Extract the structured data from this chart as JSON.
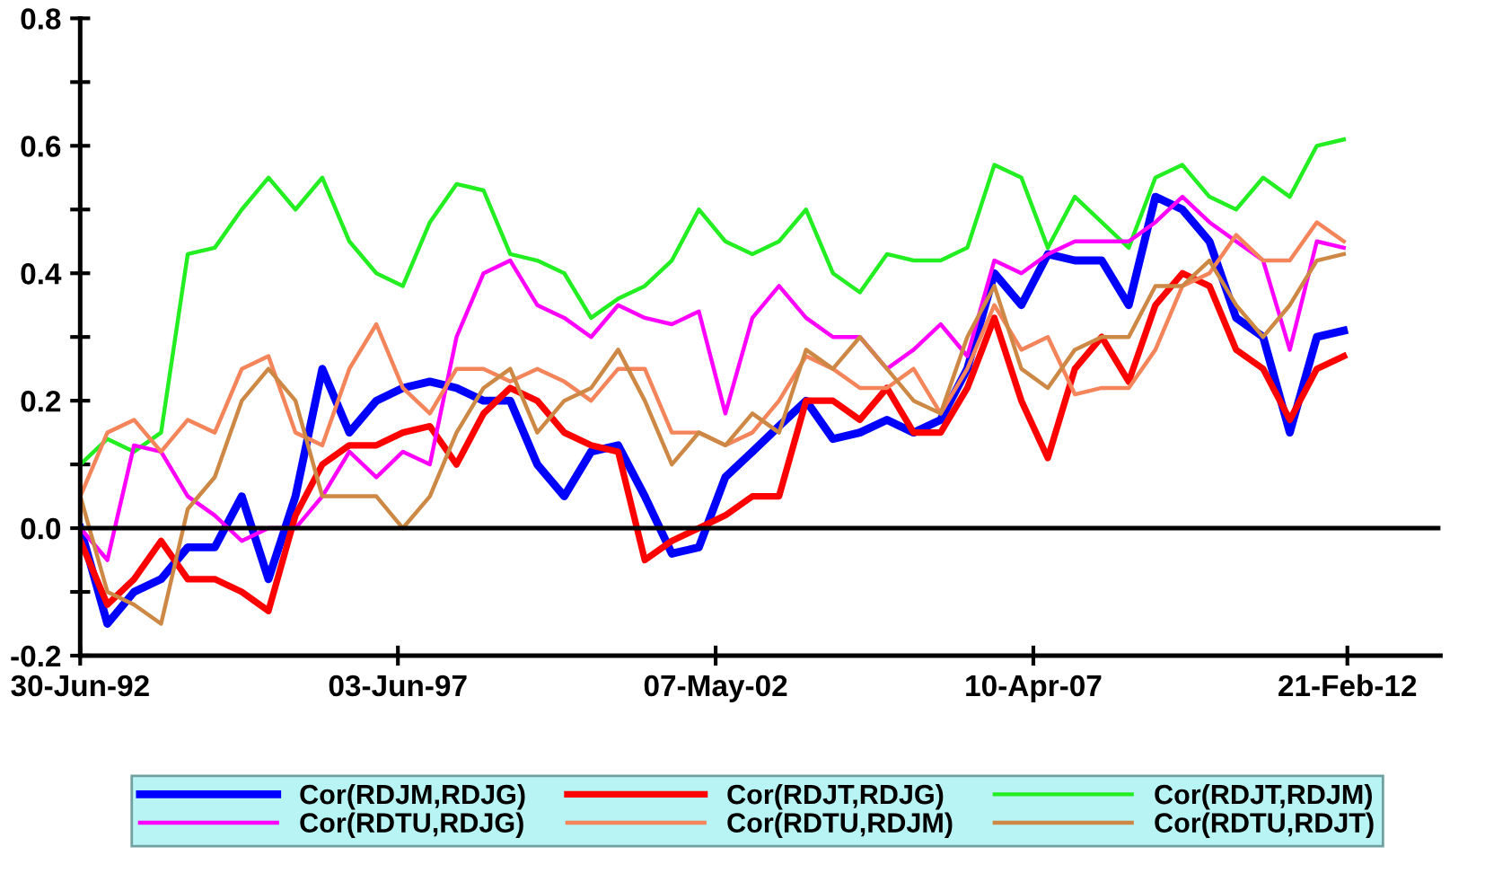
{
  "chart_data": {
    "type": "line",
    "x": [
      "1992-07-01",
      "1992-12-01",
      "1993-05-01",
      "1993-10-01",
      "1994-03-01",
      "1994-08-01",
      "1995-01-01",
      "1995-06-01",
      "1995-11-01",
      "1996-04-01",
      "1996-09-01",
      "1997-02-01",
      "1997-07-01",
      "1997-12-01",
      "1998-05-01",
      "1998-10-01",
      "1999-03-01",
      "1999-08-01",
      "2000-01-01",
      "2000-06-01",
      "2000-11-01",
      "2001-04-01",
      "2001-09-01",
      "2002-02-01",
      "2002-07-01",
      "2002-12-01",
      "2003-05-01",
      "2003-10-01",
      "2004-03-01",
      "2004-08-01",
      "2005-01-01",
      "2005-06-01",
      "2005-11-01",
      "2006-04-01",
      "2006-09-01",
      "2007-02-01",
      "2007-07-01",
      "2007-12-01",
      "2008-05-01",
      "2008-10-01",
      "2009-03-01",
      "2009-08-01",
      "2010-01-01",
      "2010-06-01",
      "2010-11-01",
      "2011-04-01",
      "2011-09-01",
      "2012-02-01"
    ],
    "series": [
      {
        "name": "Cor(RDJM,RDJG)",
        "color": "#0000ff",
        "values": [
          0.0,
          -0.15,
          -0.1,
          -0.08,
          -0.03,
          -0.03,
          0.05,
          -0.08,
          0.05,
          0.25,
          0.15,
          0.2,
          0.22,
          0.23,
          0.22,
          0.2,
          0.2,
          0.1,
          0.05,
          0.12,
          0.13,
          0.05,
          -0.04,
          -0.03,
          0.08,
          0.12,
          0.16,
          0.2,
          0.14,
          0.15,
          0.17,
          0.15,
          0.17,
          0.25,
          0.4,
          0.35,
          0.43,
          0.42,
          0.42,
          0.35,
          0.52,
          0.5,
          0.45,
          0.33,
          0.3,
          0.15,
          0.3,
          0.31
        ]
      },
      {
        "name": "Cor(RDJT,RDJG)",
        "color": "#ff0000",
        "values": [
          -0.02,
          -0.12,
          -0.08,
          -0.02,
          -0.08,
          -0.08,
          -0.1,
          -0.13,
          0.02,
          0.1,
          0.13,
          0.13,
          0.15,
          0.16,
          0.1,
          0.18,
          0.22,
          0.2,
          0.15,
          0.13,
          0.12,
          -0.05,
          -0.02,
          0.0,
          0.02,
          0.05,
          0.05,
          0.2,
          0.2,
          0.17,
          0.22,
          0.15,
          0.15,
          0.22,
          0.33,
          0.2,
          0.11,
          0.25,
          0.3,
          0.23,
          0.35,
          0.4,
          0.38,
          0.28,
          0.25,
          0.17,
          0.25,
          0.27
        ]
      },
      {
        "name": "Cor(RDJT,RDJM)",
        "color": "#22ee22",
        "values": [
          0.1,
          0.14,
          0.12,
          0.15,
          0.43,
          0.44,
          0.5,
          0.55,
          0.5,
          0.55,
          0.45,
          0.4,
          0.38,
          0.48,
          0.54,
          0.53,
          0.43,
          0.42,
          0.4,
          0.33,
          0.36,
          0.38,
          0.42,
          0.5,
          0.45,
          0.43,
          0.45,
          0.5,
          0.4,
          0.37,
          0.43,
          0.42,
          0.42,
          0.44,
          0.57,
          0.55,
          0.44,
          0.52,
          0.48,
          0.44,
          0.55,
          0.57,
          0.52,
          0.5,
          0.55,
          0.52,
          0.6,
          0.61
        ]
      },
      {
        "name": "Cor(RDTU,RDJG)",
        "color": "#ff00ff",
        "values": [
          0.0,
          -0.05,
          0.13,
          0.12,
          0.05,
          0.02,
          -0.02,
          0.0,
          0.0,
          0.05,
          0.12,
          0.08,
          0.12,
          0.1,
          0.3,
          0.4,
          0.42,
          0.35,
          0.33,
          0.3,
          0.35,
          0.33,
          0.32,
          0.34,
          0.18,
          0.33,
          0.38,
          0.33,
          0.3,
          0.3,
          0.25,
          0.28,
          0.32,
          0.27,
          0.42,
          0.4,
          0.43,
          0.45,
          0.45,
          0.45,
          0.48,
          0.52,
          0.48,
          0.45,
          0.42,
          0.28,
          0.45,
          0.44
        ]
      },
      {
        "name": "Cor(RDTU,RDJM)",
        "color": "#f4845a",
        "values": [
          0.05,
          0.15,
          0.17,
          0.12,
          0.17,
          0.15,
          0.25,
          0.27,
          0.15,
          0.13,
          0.25,
          0.32,
          0.22,
          0.18,
          0.25,
          0.25,
          0.23,
          0.25,
          0.23,
          0.2,
          0.25,
          0.25,
          0.15,
          0.15,
          0.13,
          0.15,
          0.2,
          0.27,
          0.25,
          0.22,
          0.22,
          0.25,
          0.18,
          0.25,
          0.35,
          0.28,
          0.3,
          0.21,
          0.22,
          0.22,
          0.28,
          0.38,
          0.4,
          0.46,
          0.42,
          0.42,
          0.48,
          0.45
        ]
      },
      {
        "name": "Cor(RDTU,RDJT)",
        "color": "#cc8844",
        "values": [
          0.05,
          -0.1,
          -0.12,
          -0.15,
          0.03,
          0.08,
          0.2,
          0.25,
          0.2,
          0.05,
          0.05,
          0.05,
          0.0,
          0.05,
          0.15,
          0.22,
          0.25,
          0.15,
          0.2,
          0.22,
          0.28,
          0.2,
          0.1,
          0.15,
          0.13,
          0.18,
          0.15,
          0.28,
          0.25,
          0.3,
          0.25,
          0.2,
          0.18,
          0.3,
          0.38,
          0.25,
          0.22,
          0.28,
          0.3,
          0.3,
          0.38,
          0.38,
          0.42,
          0.35,
          0.3,
          0.35,
          0.42,
          0.43
        ]
      }
    ],
    "xlim": [
      "1992-06-30",
      "2013-08-01"
    ],
    "xticks": [
      {
        "value": "1992-06-30",
        "label": "30-Jun-92"
      },
      {
        "value": "1997-06-03",
        "label": "03-Jun-97"
      },
      {
        "value": "2002-05-07",
        "label": "07-May-02"
      },
      {
        "value": "2007-04-10",
        "label": "10-Apr-07"
      },
      {
        "value": "2012-02-21",
        "label": "21-Feb-12"
      }
    ],
    "ylim": [
      -0.2,
      0.8
    ],
    "yticks": [
      {
        "value": -0.2,
        "label": "-0.2"
      },
      {
        "value": -0.1,
        "label": null
      },
      {
        "value": 0.0,
        "label": "0.0"
      },
      {
        "value": 0.1,
        "label": null
      },
      {
        "value": 0.2,
        "label": "0.2"
      },
      {
        "value": 0.3,
        "label": null
      },
      {
        "value": 0.4,
        "label": "0.4"
      },
      {
        "value": 0.5,
        "label": null
      },
      {
        "value": 0.6,
        "label": "0.6"
      },
      {
        "value": 0.7,
        "label": null
      },
      {
        "value": 0.8,
        "label": "0.8"
      }
    ],
    "ref_lines": [
      {
        "axis": "y",
        "value": 0.0,
        "label": null,
        "color": "#000000"
      }
    ],
    "grid": false,
    "legend": "bottom",
    "marker": "none",
    "line_style": "solid"
  }
}
